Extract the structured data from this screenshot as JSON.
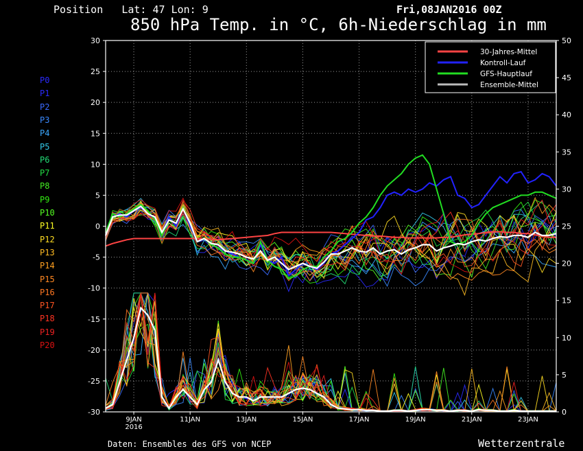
{
  "header": {
    "position_label": "Position",
    "lat_label": "Lat: 47",
    "lon_label": "Lon: 9",
    "run_time": "Fri,08JAN2016 00Z",
    "title": "850 hPa Temp. in °C, 6h-Niederschlag in mm"
  },
  "footer": {
    "source": "Daten: Ensembles des GFS von NCEP",
    "brand": "Wetterzentrale"
  },
  "members": [
    {
      "label": "P0",
      "color": "#2a2aff"
    },
    {
      "label": "P1",
      "color": "#2a2aff"
    },
    {
      "label": "P2",
      "color": "#3a6aff"
    },
    {
      "label": "P3",
      "color": "#3a8aff"
    },
    {
      "label": "P4",
      "color": "#3aa8ff"
    },
    {
      "label": "P5",
      "color": "#33c8e8"
    },
    {
      "label": "P6",
      "color": "#22dd77"
    },
    {
      "label": "P7",
      "color": "#22dd44"
    },
    {
      "label": "P8",
      "color": "#44ee22"
    },
    {
      "label": "P9",
      "color": "#33ee11"
    },
    {
      "label": "P10",
      "color": "#55ff22"
    },
    {
      "label": "P11",
      "color": "#ffff22"
    },
    {
      "label": "P12",
      "color": "#ffdd22"
    },
    {
      "label": "P13",
      "color": "#ffbb22"
    },
    {
      "label": "P14",
      "color": "#ffa020"
    },
    {
      "label": "P15",
      "color": "#ff8822"
    },
    {
      "label": "P16",
      "color": "#ff7722"
    },
    {
      "label": "P17",
      "color": "#ff5522"
    },
    {
      "label": "P18",
      "color": "#ff3322"
    },
    {
      "label": "P19",
      "color": "#ee2222"
    },
    {
      "label": "P20",
      "color": "#dd1111"
    }
  ],
  "chart_data": {
    "type": "line",
    "title": "850 hPa Temp. in °C, 6h-Niederschlag in mm",
    "x_unit": "days from 08JAN2016 00Z (6-hourly)",
    "xlim": [
      0,
      16
    ],
    "ylim_left": [
      -30,
      30
    ],
    "ylim_right": [
      0,
      50
    ],
    "yticks_left": [
      30,
      25,
      20,
      15,
      10,
      5,
      0,
      -5,
      -10,
      -15,
      -20,
      -25,
      -30
    ],
    "yticks_right": [
      50,
      45,
      40,
      35,
      30,
      25,
      20,
      15,
      10,
      5,
      0
    ],
    "xticks": [
      {
        "x": 1,
        "label": "9JAN",
        "sub": "2016"
      },
      {
        "x": 3,
        "label": "11JAN"
      },
      {
        "x": 5,
        "label": "13JAN"
      },
      {
        "x": 7,
        "label": "15JAN"
      },
      {
        "x": 9,
        "label": "17JAN"
      },
      {
        "x": 11,
        "label": "19JAN"
      },
      {
        "x": 13,
        "label": "21JAN"
      },
      {
        "x": 15,
        "label": "23JAN"
      }
    ],
    "legend": [
      {
        "name": "30-Jahres-Mittel",
        "color": "#ff4444"
      },
      {
        "name": "Kontroll-Lauf",
        "color": "#2222ff"
      },
      {
        "name": "GFS-Hauptlauf",
        "color": "#22dd22"
      },
      {
        "name": "Ensemble-Mittel",
        "color": "#bbbbbb"
      }
    ],
    "climate_mean": [
      -3.2,
      -2.8,
      -2.5,
      -2.2,
      -2.0,
      -2.0,
      -2.0,
      -2.0,
      -2.0,
      -2.0,
      -2.0,
      -2.0,
      -2.0,
      -2.0,
      -2.1,
      -2.1,
      -2.2,
      -2.1,
      -2.0,
      -1.9,
      -1.8,
      -1.7,
      -1.6,
      -1.5,
      -1.2,
      -1.0,
      -1.0,
      -1.0,
      -1.0,
      -1.0,
      -1.0,
      -1.0,
      -1.0,
      -1.1,
      -1.2,
      -1.3,
      -1.4,
      -1.5,
      -1.6,
      -1.6,
      -1.7,
      -1.8,
      -1.8,
      -1.9,
      -1.9,
      -1.9,
      -1.9,
      -1.9,
      -1.8,
      -1.8,
      -1.6,
      -1.4,
      -1.3,
      -1.2,
      -1.0,
      -0.9,
      -0.9,
      -1.0,
      -1.0,
      -1.2,
      -1.2,
      -1.4,
      -1.6,
      -1.8,
      -1.8
    ],
    "ensemble_mean_temp": [
      -1.5,
      1.5,
      1.8,
      1.8,
      2.5,
      3.2,
      2.0,
      1.5,
      -1.0,
      1.0,
      0.5,
      2.8,
      0.5,
      -2.5,
      -2.0,
      -2.8,
      -3.0,
      -4.0,
      -4.2,
      -4.5,
      -5.0,
      -5.3,
      -4.0,
      -5.5,
      -5.0,
      -6.0,
      -7.0,
      -6.5,
      -6.0,
      -6.5,
      -6.8,
      -5.8,
      -4.5,
      -4.5,
      -4.0,
      -3.5,
      -4.0,
      -4.2,
      -3.5,
      -4.5,
      -4.0,
      -3.8,
      -4.5,
      -3.8,
      -3.5,
      -3.0,
      -3.0,
      -4.0,
      -3.5,
      -3.2,
      -2.8,
      -3.0,
      -2.5,
      -2.2,
      -2.4,
      -2.0,
      -1.7,
      -1.8,
      -1.5,
      -1.5,
      -1.8,
      -1.0,
      -1.5,
      -1.5,
      -1.2
    ],
    "ensemble_mean_precip": [
      0.5,
      1,
      4,
      7,
      10,
      14,
      13,
      11,
      2,
      0.5,
      2,
      3,
      2,
      1,
      3,
      4,
      7,
      4,
      2.5,
      2,
      2,
      1.5,
      2,
      2,
      2,
      2,
      2.5,
      3,
      3.2,
      3,
      2.5,
      2,
      1,
      0.5,
      0.4,
      0.3,
      0.3,
      0.2,
      0.2,
      0.1,
      0.1,
      0.2,
      0.2,
      0.1,
      0.2,
      0.3,
      0.3,
      0.2,
      0.2,
      0.1,
      0.2,
      0.2,
      0.1,
      0.3,
      0.2,
      0.2,
      0.1,
      0.1,
      0.2,
      0.1,
      0.1,
      0.1,
      0.1,
      0.1,
      0.1
    ],
    "kontroll_lauf_temp": [
      -1.5,
      1.5,
      2.0,
      1.5,
      2.5,
      3.0,
      2.0,
      1.2,
      -1.0,
      1.5,
      0.0,
      3.0,
      0.0,
      -2.5,
      -2.0,
      -3.0,
      -3.5,
      -4.0,
      -4.5,
      -5.0,
      -5.5,
      -6.0,
      -3.0,
      -5.5,
      -6.0,
      -5.0,
      -8.0,
      -7.0,
      -6.0,
      -6.5,
      -7.0,
      -6.0,
      -4.5,
      -4.0,
      -3.0,
      -2.0,
      -1.0,
      1.0,
      1.5,
      3.0,
      5.0,
      5.5,
      5.0,
      6.0,
      5.5,
      6.0,
      7.0,
      6.5,
      7.5,
      8.0,
      5.0,
      4.5,
      3.0,
      3.5,
      5.0,
      6.5,
      8.0,
      7.0,
      8.5,
      8.8,
      7.0,
      7.5,
      8.5,
      8.0,
      6.5
    ],
    "gfs_hauptlauf_temp": [
      -1.0,
      2.0,
      1.5,
      2.0,
      2.8,
      3.5,
      2.5,
      1.0,
      -1.5,
      1.0,
      0.5,
      3.0,
      0.5,
      -2.5,
      -2.0,
      -3.0,
      -3.5,
      -4.5,
      -5.0,
      -5.0,
      -5.5,
      -6.0,
      -2.5,
      -5.5,
      -6.5,
      -7.0,
      -8.5,
      -8.0,
      -7.0,
      -6.5,
      -6.5,
      -5.0,
      -4.0,
      -2.5,
      -2.0,
      -1.0,
      0.5,
      1.5,
      3.0,
      5.0,
      6.5,
      7.5,
      8.5,
      10.0,
      11.0,
      11.5,
      10.0,
      6.0,
      2.0,
      -2.5,
      -3.0,
      -2.5,
      -1.5,
      0.5,
      2.0,
      3.0,
      3.5,
      4.0,
      4.5,
      5.0,
      5.0,
      5.5,
      5.5,
      5.0,
      4.5
    ]
  }
}
